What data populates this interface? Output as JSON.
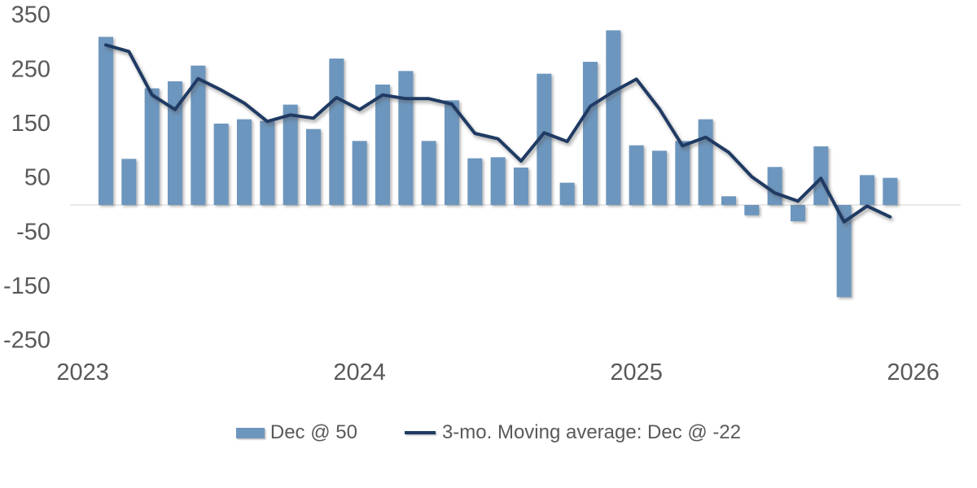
{
  "chart_data": {
    "type": "bar",
    "subtype": "bar-line-combo",
    "title": "",
    "xlabel": "",
    "ylabel": "",
    "categories": [
      "Feb 2023",
      "Mar 2023",
      "Apr 2023",
      "May 2023",
      "Jun 2023",
      "Jul 2023",
      "Aug 2023",
      "Sep 2023",
      "Oct 2023",
      "Nov 2023",
      "Dec 2023",
      "Jan 2024",
      "Feb 2024",
      "Mar 2024",
      "Apr 2024",
      "May 2024",
      "Jun 2024",
      "Jul 2024",
      "Aug 2024",
      "Sep 2024",
      "Oct 2024",
      "Nov 2024",
      "Dec 2024",
      "Jan 2025",
      "Feb 2025",
      "Mar 2025",
      "Apr 2025",
      "May 2025",
      "Jun 2025",
      "Jul 2025",
      "Aug 2025",
      "Sep 2025",
      "Oct 2025",
      "Nov 2025",
      "Dec 2025"
    ],
    "series": [
      {
        "name": "Dec @ 50",
        "type": "bar",
        "values": [
          310,
          85,
          215,
          228,
          257,
          150,
          158,
          155,
          185,
          140,
          270,
          118,
          222,
          247,
          118,
          193,
          86,
          88,
          69,
          242,
          41,
          264,
          322,
          110,
          100,
          118,
          158,
          16,
          -19,
          70,
          -30,
          108,
          -170,
          55,
          50
        ]
      },
      {
        "name": "3-mo. Moving average: Dec @ -22",
        "type": "line",
        "values": [
          295,
          283,
          203,
          176,
          233,
          212,
          188,
          154,
          166,
          160,
          198,
          176,
          203,
          196,
          196,
          186,
          132,
          122,
          81,
          133,
          117,
          182,
          209,
          232,
          177,
          109,
          125,
          97,
          52,
          22,
          7,
          49,
          -31,
          -2,
          -22
        ]
      }
    ],
    "x_tick_labels": [
      "2023",
      "2024",
      "2025",
      "2026"
    ],
    "y_ticks": [
      350,
      250,
      150,
      50,
      -50,
      -150,
      -250
    ],
    "ylim": [
      -250,
      350
    ],
    "grid": "horizontal zero-line only",
    "legend_position": "bottom",
    "colors": {
      "bar_fill": "#6D96BE",
      "line_stroke": "#1F3A63",
      "axis_text": "#595959",
      "zero_line": "#D9D9D9"
    }
  },
  "legend": {
    "bar_label": "Dec @ 50",
    "line_label": "3-mo. Moving average: Dec @ -22"
  }
}
